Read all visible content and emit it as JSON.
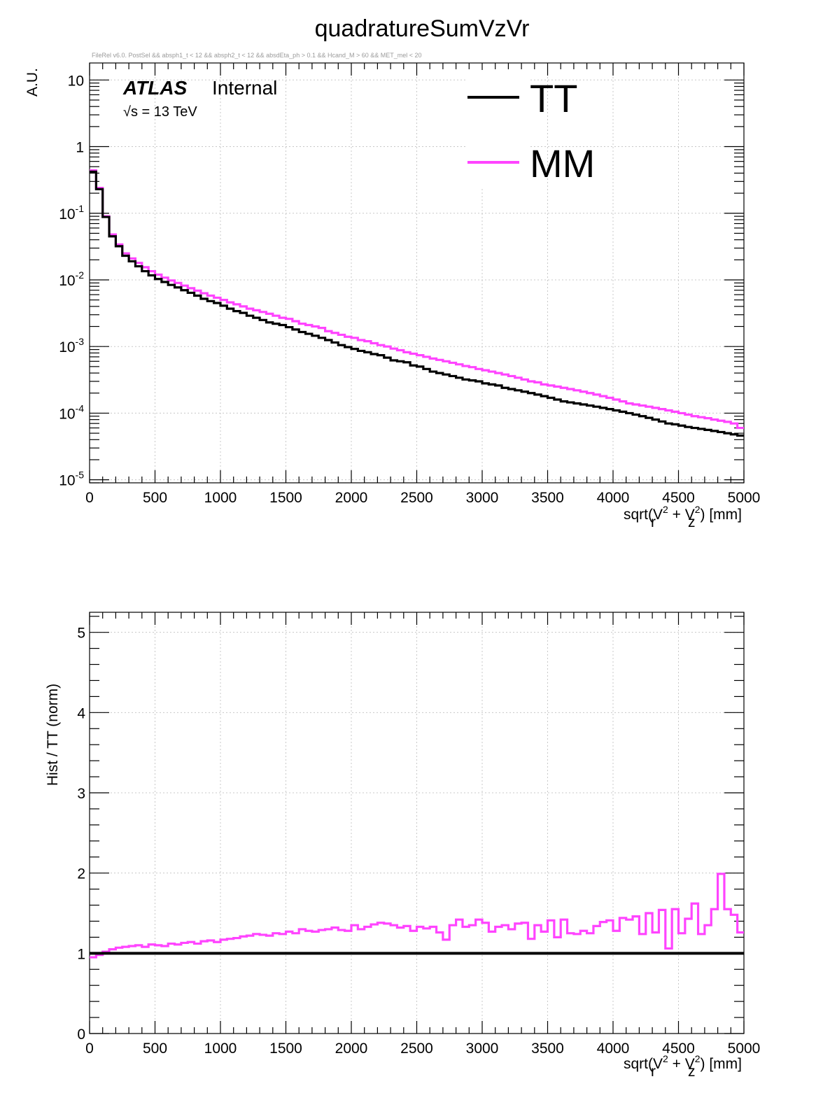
{
  "title": "quadratureSumVzVr",
  "cut_text": "FileRel v6.0. PostSel &&  absph1_t < 12 && absph2_t < 12 && absdEta_ph > 0.1 && Hcand_M > 60 && MET_mel < 20",
  "atlas_label": "ATLAS",
  "internal_label": "Internal",
  "energy_label": "√s = 13 TeV",
  "legend": [
    {
      "name": "TT",
      "color": "#000000"
    },
    {
      "name": "MM",
      "color": "#ff44ff"
    }
  ],
  "x_axis": {
    "label_base": "sqrt(V",
    "label_r": "r",
    "label_mid": " + V",
    "label_z": "z",
    "label_sup": "2",
    "label_end": ") [mm]",
    "ticks": [
      "0",
      "500",
      "1000",
      "1500",
      "2000",
      "2500",
      "3000",
      "3500",
      "4000",
      "4500",
      "5000"
    ]
  },
  "top_panel": {
    "ylabel": "A.U.",
    "ytick_labels": [
      {
        "mant": "10",
        "exp": "-5"
      },
      {
        "mant": "10",
        "exp": "-4"
      },
      {
        "mant": "10",
        "exp": "-3"
      },
      {
        "mant": "10",
        "exp": "-2"
      },
      {
        "mant": "10",
        "exp": "-1"
      },
      {
        "mant": "1",
        "exp": ""
      },
      {
        "mant": "10",
        "exp": ""
      }
    ]
  },
  "bottom_panel": {
    "ylabel": "Hist / TT (norm)",
    "ytick_labels": [
      "0",
      "1",
      "2",
      "3",
      "4",
      "5"
    ]
  },
  "chart_data": [
    {
      "type": "line",
      "title": "quadratureSumVzVr",
      "xlabel": "sqrt(V_r^2 + V_z^2) [mm]",
      "ylabel": "A.U.",
      "yscale": "log",
      "xlim": [
        0,
        5000
      ],
      "ylim": [
        9e-06,
        18
      ],
      "bin_width": 50,
      "grid": true,
      "legend_position": "top-right",
      "series": [
        {
          "name": "TT",
          "color": "#000000",
          "values": [
            0.42,
            0.23,
            0.088,
            0.045,
            0.032,
            0.023,
            0.019,
            0.016,
            0.0135,
            0.0117,
            0.0103,
            0.0093,
            0.0084,
            0.0077,
            0.007,
            0.0064,
            0.0058,
            0.0052,
            0.0048,
            0.0045,
            0.0041,
            0.0037,
            0.0034,
            0.0032,
            0.0029,
            0.0027,
            0.0025,
            0.0023,
            0.0022,
            0.0021,
            0.00195,
            0.0018,
            0.00165,
            0.00155,
            0.00145,
            0.00135,
            0.00125,
            0.00115,
            0.00105,
            0.00098,
            0.00092,
            0.00086,
            0.00082,
            0.00077,
            0.00074,
            0.00068,
            0.00062,
            0.0006,
            0.00058,
            0.00052,
            0.0005,
            0.00046,
            0.00042,
            0.0004,
            0.00038,
            0.00036,
            0.00034,
            0.00032,
            0.00031,
            0.0003,
            0.00028,
            0.00027,
            0.00026,
            0.00024,
            0.00023,
            0.00022,
            0.00021,
            0.0002,
            0.00019,
            0.00018,
            0.00017,
            0.00016,
            0.00015,
            0.000145,
            0.00014,
            0.000135,
            0.00013,
            0.000125,
            0.00012,
            0.000115,
            0.00011,
            0.000105,
            0.0001,
            9.5e-05,
            9e-05,
            8.5e-05,
            8e-05,
            7.5e-05,
            7e-05,
            6.8e-05,
            6.5e-05,
            6.2e-05,
            6e-05,
            5.8e-05,
            5.6e-05,
            5.4e-05,
            5.2e-05,
            5e-05,
            4.8e-05,
            4.6e-05
          ]
        },
        {
          "name": "MM",
          "color": "#ff44ff",
          "values": [
            0.44,
            0.24,
            0.09,
            0.048,
            0.034,
            0.025,
            0.021,
            0.018,
            0.0155,
            0.0135,
            0.012,
            0.0108,
            0.0098,
            0.009,
            0.0082,
            0.0075,
            0.0069,
            0.0063,
            0.0058,
            0.0054,
            0.005,
            0.0046,
            0.0043,
            0.004,
            0.0037,
            0.0035,
            0.0033,
            0.0031,
            0.0029,
            0.0027,
            0.0026,
            0.0024,
            0.0022,
            0.0021,
            0.002,
            0.0019,
            0.0017,
            0.0016,
            0.0015,
            0.0014,
            0.00135,
            0.00125,
            0.0012,
            0.00112,
            0.00105,
            0.001,
            0.00093,
            0.00088,
            0.00082,
            0.00078,
            0.00074,
            0.0007,
            0.00066,
            0.00063,
            0.0006,
            0.00057,
            0.00054,
            0.00051,
            0.00049,
            0.00046,
            0.00044,
            0.00042,
            0.0004,
            0.00038,
            0.00036,
            0.00034,
            0.00032,
            0.0003,
            0.00029,
            0.00027,
            0.00026,
            0.00025,
            0.00024,
            0.00023,
            0.00022,
            0.00021,
            0.0002,
            0.00019,
            0.00018,
            0.00017,
            0.00016,
            0.00015,
            0.00014,
            0.000135,
            0.00013,
            0.000125,
            0.00012,
            0.000115,
            0.00011,
            0.000105,
            0.0001,
            9.5e-05,
            9e-05,
            8.7e-05,
            8.4e-05,
            8e-05,
            7.7e-05,
            7.4e-05,
            7e-05,
            6e-05
          ]
        }
      ]
    },
    {
      "type": "line",
      "xlabel": "sqrt(V_r^2 + V_z^2) [mm]",
      "ylabel": "Hist / TT (norm)",
      "xlim": [
        0,
        5000
      ],
      "ylim": [
        0,
        5.25
      ],
      "bin_width": 50,
      "grid": true,
      "series": [
        {
          "name": "TT",
          "color": "#000000",
          "values": [
            1,
            1,
            1,
            1,
            1,
            1,
            1,
            1,
            1,
            1,
            1,
            1,
            1,
            1,
            1,
            1,
            1,
            1,
            1,
            1,
            1,
            1,
            1,
            1,
            1,
            1,
            1,
            1,
            1,
            1,
            1,
            1,
            1,
            1,
            1,
            1,
            1,
            1,
            1,
            1,
            1,
            1,
            1,
            1,
            1,
            1,
            1,
            1,
            1,
            1,
            1,
            1,
            1,
            1,
            1,
            1,
            1,
            1,
            1,
            1,
            1,
            1,
            1,
            1,
            1,
            1,
            1,
            1,
            1,
            1,
            1,
            1,
            1,
            1,
            1,
            1,
            1,
            1,
            1,
            1,
            1,
            1,
            1,
            1,
            1,
            1,
            1,
            1,
            1,
            1,
            1,
            1,
            1,
            1,
            1,
            1,
            1,
            1,
            1,
            1
          ]
        },
        {
          "name": "MM",
          "color": "#ff44ff",
          "values": [
            0.95,
            0.98,
            1.02,
            1.05,
            1.07,
            1.08,
            1.09,
            1.1,
            1.08,
            1.11,
            1.1,
            1.09,
            1.12,
            1.11,
            1.13,
            1.14,
            1.12,
            1.15,
            1.16,
            1.14,
            1.17,
            1.18,
            1.19,
            1.21,
            1.22,
            1.24,
            1.23,
            1.22,
            1.25,
            1.24,
            1.27,
            1.25,
            1.3,
            1.28,
            1.27,
            1.29,
            1.3,
            1.32,
            1.29,
            1.28,
            1.35,
            1.3,
            1.33,
            1.36,
            1.38,
            1.37,
            1.35,
            1.32,
            1.34,
            1.28,
            1.33,
            1.31,
            1.33,
            1.26,
            1.17,
            1.35,
            1.42,
            1.33,
            1.35,
            1.42,
            1.38,
            1.27,
            1.33,
            1.35,
            1.3,
            1.37,
            1.38,
            1.18,
            1.35,
            1.27,
            1.41,
            1.2,
            1.42,
            1.25,
            1.24,
            1.28,
            1.25,
            1.34,
            1.39,
            1.41,
            1.28,
            1.44,
            1.42,
            1.46,
            1.24,
            1.5,
            1.26,
            1.54,
            1.06,
            1.55,
            1.25,
            1.43,
            1.62,
            1.24,
            1.35,
            1.55,
            1.99,
            1.55,
            1.48,
            1.26
          ]
        }
      ]
    }
  ]
}
